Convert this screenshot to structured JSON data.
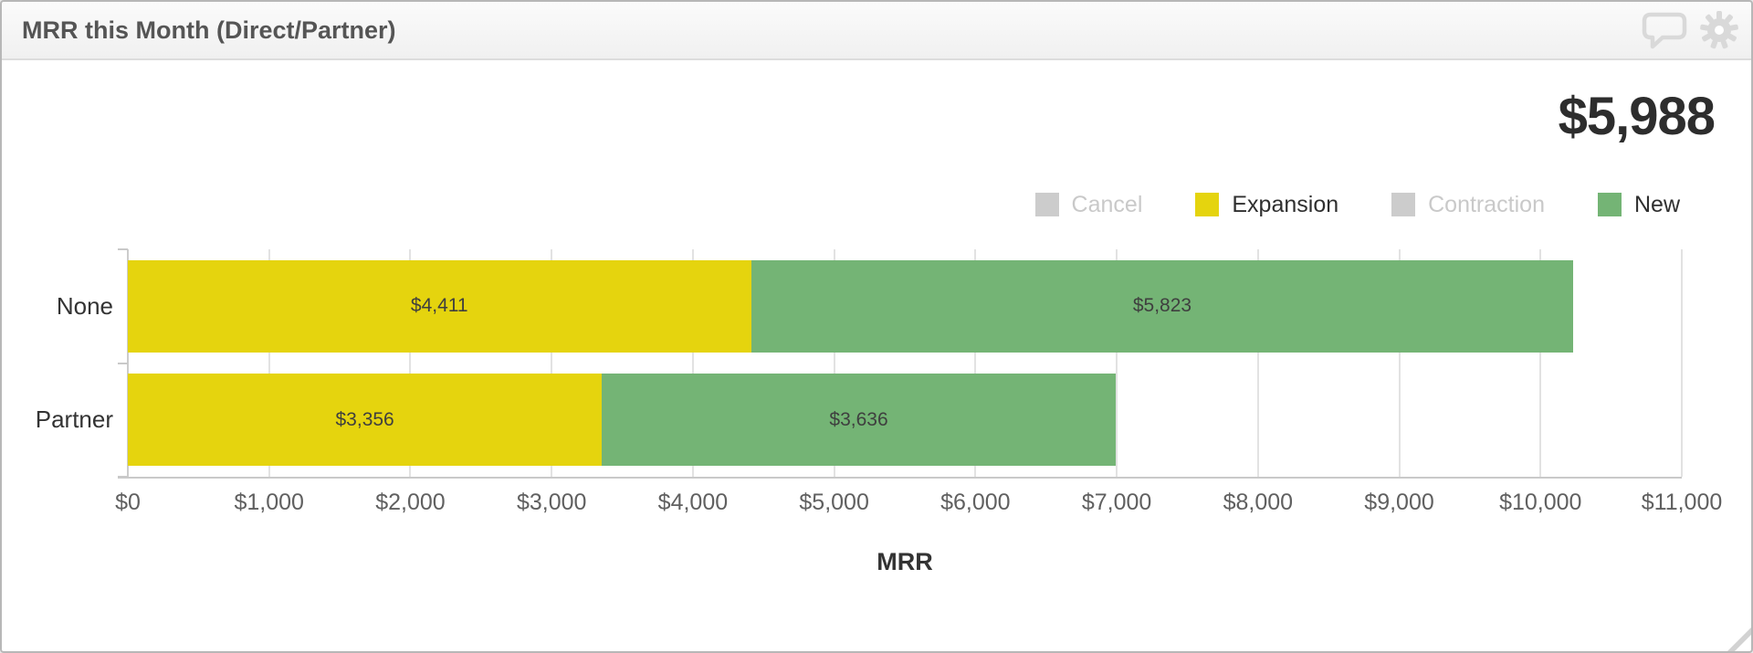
{
  "widget": {
    "title": "MRR this Month (Direct/Partner)",
    "big_number": "$5,988"
  },
  "legend": [
    {
      "label": "Cancel",
      "color": "#cccccc",
      "enabled": false
    },
    {
      "label": "Expansion",
      "color": "#e5d40e",
      "enabled": true
    },
    {
      "label": "Contraction",
      "color": "#cccccc",
      "enabled": false
    },
    {
      "label": "New",
      "color": "#74b475",
      "enabled": true
    }
  ],
  "chart_data": {
    "type": "bar",
    "orientation": "horizontal",
    "stacked": true,
    "title": "MRR this Month (Direct/Partner)",
    "categories": [
      "None",
      "Partner"
    ],
    "series": [
      {
        "name": "Expansion",
        "color": "#e5d40e",
        "values": [
          4411,
          3356
        ],
        "labels": [
          "$4,411",
          "$3,356"
        ]
      },
      {
        "name": "New",
        "color": "#74b475",
        "values": [
          5823,
          3636
        ],
        "labels": [
          "$5,823",
          "$3,636"
        ]
      }
    ],
    "xlabel": "MRR",
    "ylabel": "",
    "xlim": [
      0,
      11000
    ],
    "tick_step": 1000,
    "tick_labels": [
      "$0",
      "$1,000",
      "$2,000",
      "$3,000",
      "$4,000",
      "$5,000",
      "$6,000",
      "$7,000",
      "$8,000",
      "$9,000",
      "$10,000",
      "$11,000"
    ],
    "grid": true,
    "legend_position": "top-right"
  }
}
